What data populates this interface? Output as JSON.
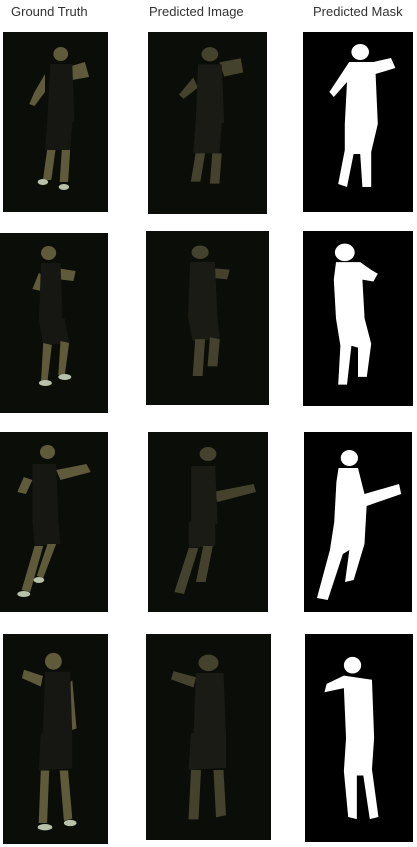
{
  "headers": {
    "ground_truth": "Ground Truth",
    "predicted_image": "Predicted Image",
    "predicted_mask": "Predicted Mask"
  },
  "colors": {
    "background": "#ffffff",
    "photo_background": "#0b0d08",
    "mask_background": "#000000",
    "mask_foreground": "#ffffff",
    "figure_skin": "#6b6a45",
    "figure_clothing": "#1a1c18"
  },
  "rows": [
    {
      "pose": "arms-raised-right"
    },
    {
      "pose": "side-guard"
    },
    {
      "pose": "arm-extended-right"
    },
    {
      "pose": "walking-left-arm-up"
    }
  ]
}
